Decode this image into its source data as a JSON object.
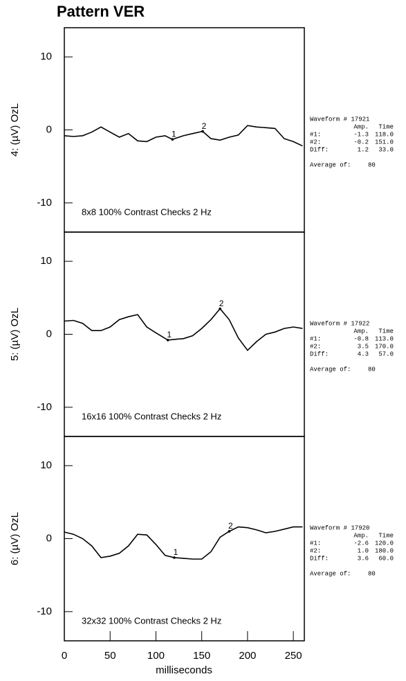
{
  "title": "Pattern VER",
  "x_axis": {
    "label": "milliseconds",
    "xlim": [
      0,
      262
    ],
    "xticks": [
      0,
      50,
      100,
      150,
      200,
      250
    ]
  },
  "chart_data": [
    {
      "type": "line",
      "ylabel": "4:  (µV)  OzL",
      "annotation": "8x8  100% Contrast  Checks 2 Hz",
      "ylim": [
        -14,
        14
      ],
      "yticks": [
        -10,
        0,
        10
      ],
      "color": "#000000",
      "x": [
        0,
        10,
        20,
        30,
        40,
        50,
        60,
        70,
        80,
        90,
        100,
        110,
        118,
        130,
        140,
        151,
        160,
        170,
        180,
        190,
        200,
        210,
        220,
        230,
        240,
        250,
        260
      ],
      "values": [
        -0.8,
        -0.9,
        -0.8,
        -0.3,
        0.4,
        -0.3,
        -1.0,
        -0.5,
        -1.5,
        -1.6,
        -1.0,
        -0.8,
        -1.3,
        -0.8,
        -0.5,
        -0.2,
        -1.2,
        -1.4,
        -1.0,
        -0.7,
        0.6,
        0.4,
        0.3,
        0.2,
        -1.2,
        -1.6,
        -2.2
      ],
      "markers": [
        {
          "label": "1",
          "x": 118,
          "y": -1.3
        },
        {
          "label": "2",
          "x": 151,
          "y": -0.2
        }
      ],
      "info": {
        "waveform": "Waveform # 17921",
        "header": [
          "Amp.",
          "Time"
        ],
        "rows": [
          [
            "#1:",
            "-1.3",
            "118.0"
          ],
          [
            "#2:",
            "-0.2",
            "151.0"
          ],
          [
            "Diff:",
            "1.2",
            "33.0"
          ]
        ],
        "average": [
          "Average of:",
          "80"
        ]
      }
    },
    {
      "type": "line",
      "ylabel": "5:  (µV)  OzL",
      "annotation": "16x16  100% Contrast  Checks 2 Hz",
      "ylim": [
        -14,
        14
      ],
      "yticks": [
        -10,
        0,
        10
      ],
      "color": "#000000",
      "x": [
        0,
        10,
        20,
        30,
        40,
        50,
        60,
        70,
        80,
        90,
        100,
        113,
        120,
        130,
        140,
        150,
        160,
        170,
        180,
        190,
        200,
        210,
        220,
        230,
        240,
        250,
        260
      ],
      "values": [
        1.8,
        1.9,
        1.5,
        0.5,
        0.5,
        1.0,
        2.0,
        2.4,
        2.7,
        1.0,
        0.2,
        -0.8,
        -0.7,
        -0.6,
        -0.2,
        0.8,
        2.0,
        3.5,
        2.0,
        -0.5,
        -2.2,
        -1.0,
        0.0,
        0.3,
        0.8,
        1.0,
        0.8
      ],
      "markers": [
        {
          "label": "1",
          "x": 113,
          "y": -0.8
        },
        {
          "label": "2",
          "x": 170,
          "y": 3.5
        }
      ],
      "info": {
        "waveform": "Waveform # 17922",
        "header": [
          "Amp.",
          "Time"
        ],
        "rows": [
          [
            "#1:",
            "-0.8",
            "113.0"
          ],
          [
            "#2:",
            "3.5",
            "170.0"
          ],
          [
            "Diff:",
            "4.3",
            "57.0"
          ]
        ],
        "average": [
          "Average of:",
          "80"
        ]
      }
    },
    {
      "type": "line",
      "ylabel": "6:  (µV)  OzL",
      "annotation": "32x32  100% Contrast  Checks 2 Hz",
      "ylim": [
        -14,
        14
      ],
      "yticks": [
        -10,
        0,
        10
      ],
      "color": "#000000",
      "x": [
        0,
        10,
        20,
        30,
        40,
        50,
        60,
        70,
        80,
        90,
        100,
        110,
        120,
        130,
        140,
        150,
        160,
        170,
        180,
        190,
        200,
        210,
        220,
        230,
        240,
        250,
        260
      ],
      "values": [
        0.9,
        0.6,
        0.0,
        -1.0,
        -2.6,
        -2.4,
        -2.0,
        -1.0,
        0.6,
        0.5,
        -0.8,
        -2.3,
        -2.6,
        -2.7,
        -2.8,
        -2.8,
        -1.8,
        0.2,
        1.0,
        1.6,
        1.5,
        1.2,
        0.8,
        1.0,
        1.3,
        1.6,
        1.6
      ],
      "markers": [
        {
          "label": "1",
          "x": 120,
          "y": -2.6
        },
        {
          "label": "2",
          "x": 180,
          "y": 1.0
        }
      ],
      "info": {
        "waveform": "Waveform # 17920",
        "header": [
          "Amp.",
          "Time"
        ],
        "rows": [
          [
            "#1:",
            "-2.6",
            "120.0"
          ],
          [
            "#2:",
            "1.0",
            "180.0"
          ],
          [
            "Diff:",
            "3.6",
            "60.0"
          ]
        ],
        "average": [
          "Average of:",
          "80"
        ]
      }
    }
  ]
}
